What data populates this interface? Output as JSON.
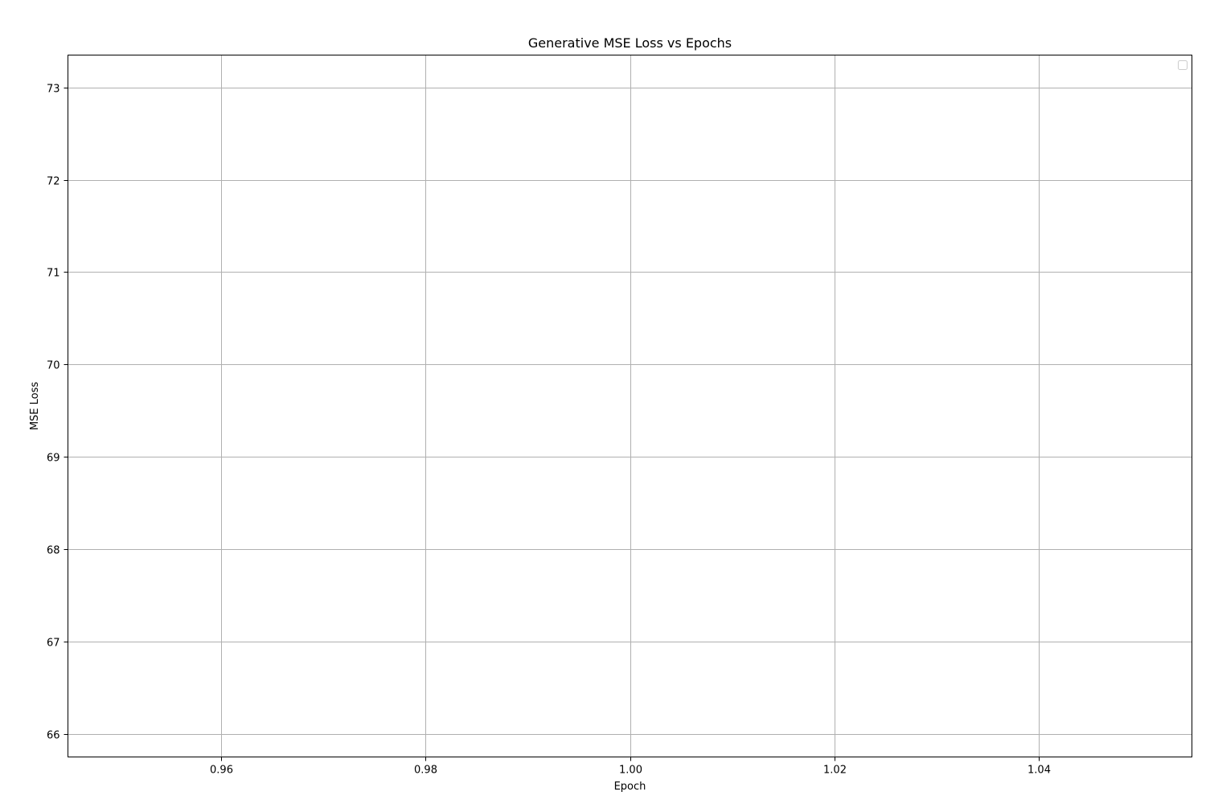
{
  "chart_data": {
    "type": "line",
    "title": "Generative MSE Loss vs Epochs",
    "xlabel": "Epoch",
    "ylabel": "MSE Loss",
    "xlim": [
      0.945,
      1.055
    ],
    "ylim": [
      65.75,
      73.35
    ],
    "xticks": [
      0.96,
      0.98,
      1.0,
      1.02,
      1.04
    ],
    "xtick_labels": [
      "0.96",
      "0.98",
      "1.00",
      "1.02",
      "1.04"
    ],
    "yticks": [
      66,
      67,
      68,
      69,
      70,
      71,
      72,
      73
    ],
    "ytick_labels": [
      "66",
      "67",
      "68",
      "69",
      "70",
      "71",
      "72",
      "73"
    ],
    "series": [],
    "grid": true,
    "legend": {
      "placement": "top-right",
      "entries": []
    },
    "colors": {
      "grid": "#b0b0b0",
      "frame": "#000000"
    }
  }
}
